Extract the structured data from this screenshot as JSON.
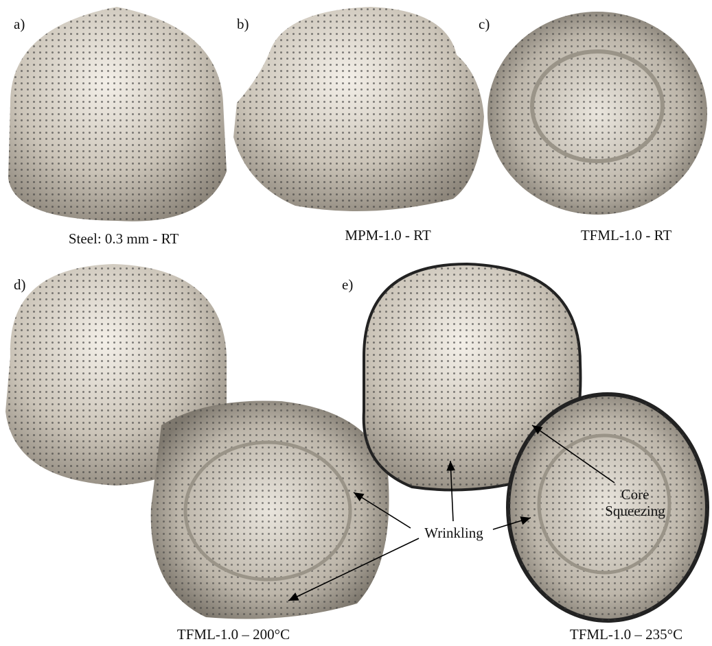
{
  "panels": [
    {
      "label": "a)",
      "caption": "Steel: 0.3 mm - RT"
    },
    {
      "label": "b)",
      "caption": "MPM-1.0 - RT"
    },
    {
      "label": "c)",
      "caption": "TFML-1.0 - RT"
    },
    {
      "label": "d)",
      "caption": "TFML-1.0 – 200°C"
    },
    {
      "label": "e)",
      "caption": "TFML-1.0 – 235°C"
    }
  ],
  "annotations": {
    "wrinkling": "Wrinkling",
    "core_squeezing": [
      "Core",
      "Squeezing"
    ]
  }
}
